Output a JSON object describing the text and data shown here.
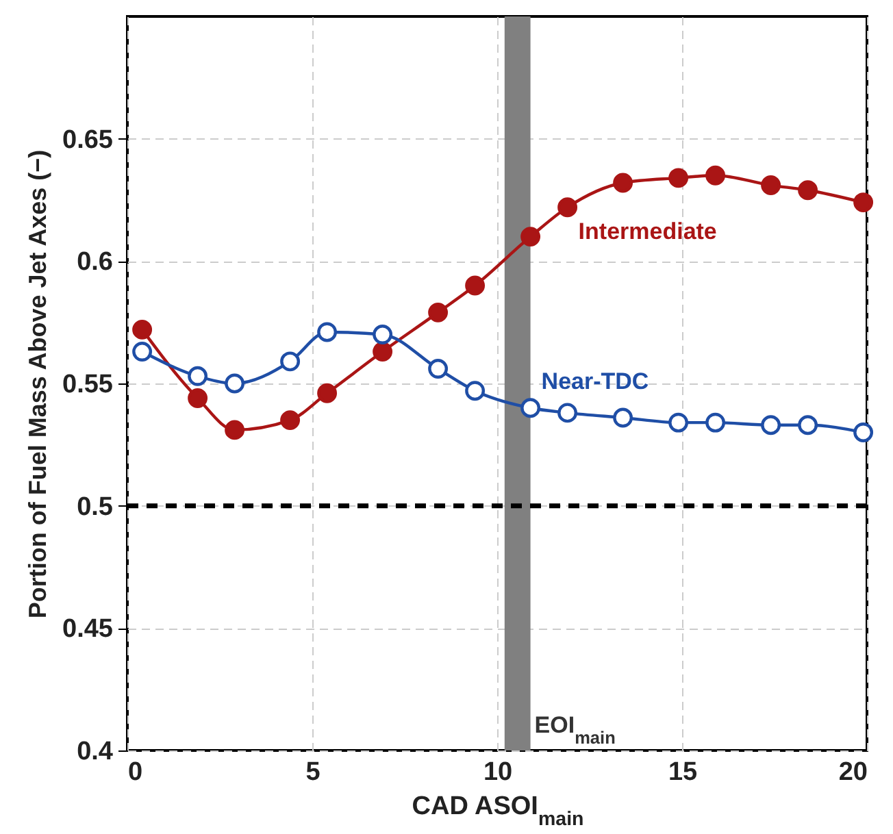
{
  "chart_data": {
    "type": "line",
    "xlabel": "CAD ASOI$_{main}$",
    "ylabel": "Portion of Fuel Mass Above Jet Axes (−)",
    "x": [
      0.4,
      1.9,
      2.9,
      4.4,
      5.4,
      6.9,
      8.4,
      9.4,
      10.9,
      11.9,
      13.4,
      14.9,
      15.9,
      17.4,
      18.4,
      19.9
    ],
    "series": [
      {
        "name": "Intermediate",
        "color": "#aa1515",
        "values": [
          0.572,
          0.544,
          0.531,
          0.535,
          0.546,
          0.563,
          0.579,
          0.59,
          0.61,
          0.622,
          0.632,
          0.634,
          0.635,
          0.631,
          0.629,
          0.624
        ]
      },
      {
        "name": "Near-TDC",
        "color": "#1f4ea6",
        "values": [
          0.563,
          0.553,
          0.55,
          0.559,
          0.571,
          0.57,
          0.556,
          0.547,
          0.54,
          0.538,
          0.536,
          0.534,
          0.534,
          0.533,
          0.533,
          0.53
        ]
      }
    ],
    "xlim": [
      0,
      20
    ],
    "xticks": [
      0,
      5,
      10,
      15,
      20
    ],
    "ylim": [
      0.4,
      0.7
    ],
    "yticks": [
      0.4,
      0.45,
      0.5,
      0.55,
      0.6,
      0.65
    ],
    "ref_lines": [
      {
        "axis": "y",
        "value": 0.5,
        "color": "#000000",
        "line_style": "dashed"
      }
    ],
    "bands": [
      {
        "axis": "x",
        "from": 10.2,
        "to": 10.9,
        "label": "EOI$_{main}$",
        "color": "#808080"
      }
    ],
    "grid": true,
    "legend": false,
    "marker": "circle",
    "line_style": "solid"
  }
}
